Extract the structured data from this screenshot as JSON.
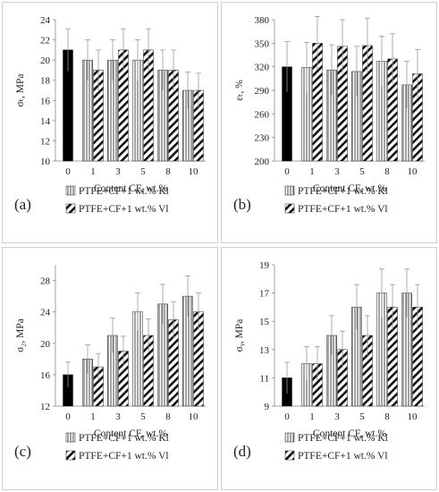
{
  "chart_data": [
    {
      "id": "a",
      "type": "bar",
      "panel_label": "(a)",
      "ylabel": "σₜ, MPa",
      "xlabel": "Content CF, wt.%",
      "ylim": [
        10,
        24
      ],
      "yticks": [
        10,
        12,
        14,
        16,
        18,
        20,
        22,
        24
      ],
      "categories": [
        "0",
        "1",
        "3",
        "5",
        "8",
        "10"
      ],
      "base": {
        "category": "0",
        "value": 21,
        "err": 2.1
      },
      "series": [
        {
          "name": "PTFE+CF+1 wt.% Kl",
          "pattern": "kl",
          "values": [
            null,
            20,
            20,
            20,
            19,
            17
          ],
          "errors": [
            null,
            2.0,
            2.0,
            2.0,
            2.0,
            1.8
          ]
        },
        {
          "name": "PTFE+CF+1 wt.% Vl",
          "pattern": "vl",
          "values": [
            null,
            19,
            21,
            21,
            19,
            17
          ],
          "errors": [
            null,
            2.0,
            2.1,
            2.1,
            2.0,
            1.7
          ]
        }
      ]
    },
    {
      "id": "b",
      "type": "bar",
      "panel_label": "(b)",
      "ylabel": "εₜ, %",
      "xlabel": "Content CF, wt.%",
      "ylim": [
        200,
        380
      ],
      "yticks": [
        200,
        230,
        260,
        290,
        320,
        350,
        380
      ],
      "categories": [
        "0",
        "1",
        "3",
        "5",
        "8",
        "10"
      ],
      "base": {
        "category": "0",
        "value": 320,
        "err": 32
      },
      "series": [
        {
          "name": "PTFE+CF+1 wt.% Kl",
          "pattern": "kl",
          "values": [
            null,
            319,
            316,
            314,
            327,
            297
          ],
          "errors": [
            null,
            32,
            32,
            32,
            32,
            30
          ]
        },
        {
          "name": "PTFE+CF+1 wt.% Vl",
          "pattern": "vl",
          "values": [
            null,
            350,
            346,
            347,
            330,
            311
          ],
          "errors": [
            null,
            34,
            34,
            35,
            32,
            31
          ]
        }
      ]
    },
    {
      "id": "c",
      "type": "bar",
      "panel_label": "(c)",
      "ylabel": "σ₂, MPa",
      "xlabel": "Content CF, wt.%",
      "ylim": [
        12,
        30
      ],
      "yticks": [
        12,
        16,
        20,
        24,
        28
      ],
      "categories": [
        "0",
        "1",
        "3",
        "5",
        "8",
        "10"
      ],
      "base": {
        "category": "0",
        "value": 16,
        "err": 1.6
      },
      "series": [
        {
          "name": "PTFE+CF+1 wt.% Kl",
          "pattern": "kl",
          "values": [
            null,
            18,
            21,
            24,
            25,
            26
          ],
          "errors": [
            null,
            1.8,
            2.2,
            2.4,
            2.5,
            2.6
          ]
        },
        {
          "name": "PTFE+CF+1 wt.% Vl",
          "pattern": "vl",
          "values": [
            null,
            17,
            19,
            21,
            23,
            24
          ],
          "errors": [
            null,
            1.7,
            1.9,
            2.1,
            2.3,
            2.4
          ]
        }
      ]
    },
    {
      "id": "d",
      "type": "bar",
      "panel_label": "(d)",
      "ylabel": "σᵧ, MPa",
      "xlabel": "Content CF, wt.%",
      "ylim": [
        9,
        19
      ],
      "yticks": [
        9,
        11,
        13,
        15,
        17,
        19
      ],
      "categories": [
        "0",
        "1",
        "3",
        "5",
        "8",
        "10"
      ],
      "base": {
        "category": "0",
        "value": 11,
        "err": 1.1
      },
      "series": [
        {
          "name": "PTFE+CF+1 wt.% Kl",
          "pattern": "kl",
          "values": [
            null,
            12,
            14,
            16,
            17,
            17
          ],
          "errors": [
            null,
            1.2,
            1.4,
            1.6,
            1.7,
            1.7
          ]
        },
        {
          "name": "PTFE+CF+1 wt.% Vl",
          "pattern": "vl",
          "values": [
            null,
            12,
            13,
            14,
            16,
            16
          ],
          "errors": [
            null,
            1.2,
            1.3,
            1.4,
            1.6,
            1.6
          ]
        }
      ]
    }
  ]
}
